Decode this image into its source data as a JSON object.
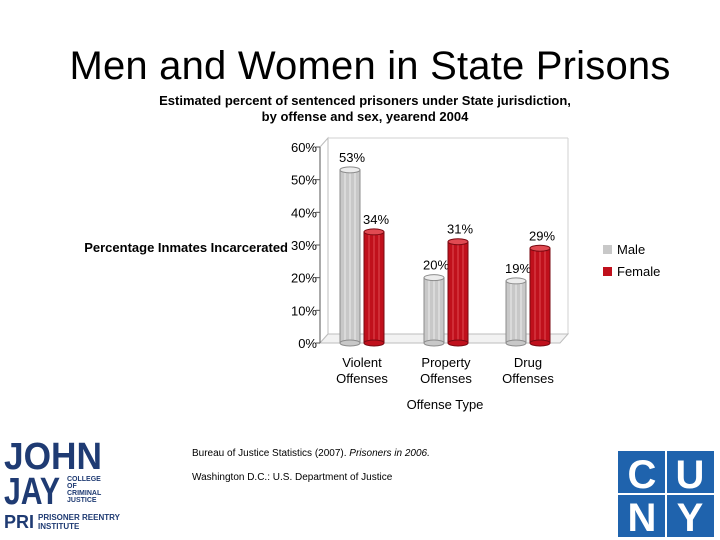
{
  "slide": {
    "title": "Men and Women in State Prisons",
    "subtitle_line1": "Estimated percent of sentenced prisoners under State jurisdiction,",
    "subtitle_line2": "by offense and sex, yearend 2004"
  },
  "chart_data": {
    "type": "bar",
    "title": "Men and Women in State Prisons",
    "subtitle": "Estimated percent of sentenced prisoners under State jurisdiction, by offense and sex, yearend 2004",
    "categories": [
      [
        "Violent",
        "Offenses"
      ],
      [
        "Property",
        "Offenses"
      ],
      [
        "Drug",
        "Offenses"
      ]
    ],
    "series": [
      {
        "name": "Male",
        "values": [
          53,
          20,
          19
        ],
        "color": "#c8c8c8"
      },
      {
        "name": "Female",
        "values": [
          34,
          31,
          29
        ],
        "color": "#c0101c"
      }
    ],
    "data_labels": [
      "53%",
      "34%",
      "20%",
      "31%",
      "19%",
      "29%"
    ],
    "ylabel": "Percentage Inmates Incarcerated",
    "xlabel": "Offense Type",
    "ylim": [
      0,
      60
    ],
    "yticks": [
      "0%",
      "10%",
      "20%",
      "30%",
      "40%",
      "50%",
      "60%"
    ],
    "legend_position": "right"
  },
  "source": {
    "line1_prefix": "Bureau of Justice Statistics (2007). ",
    "line1_italic": "Prisoners in 2006.",
    "line2": "Washington D.C.: U.S. Department of Justice"
  },
  "logos": {
    "john_jay": {
      "line1": "JOHN",
      "line2": "JAY",
      "college": [
        "COLLEGE",
        "OF",
        "CRIMINAL",
        "JUSTICE"
      ],
      "pri": "PRI",
      "pri_line1": "PRISONER REENTRY",
      "pri_line2": "INSTITUTE"
    },
    "cuny": {
      "row1": [
        "C",
        "U"
      ],
      "row2": [
        "N",
        "Y"
      ]
    }
  },
  "colors": {
    "male": "#c8c8c8",
    "female": "#c0101c",
    "navy": "#1f3b73",
    "cuny_blue": "#1f63ad"
  }
}
